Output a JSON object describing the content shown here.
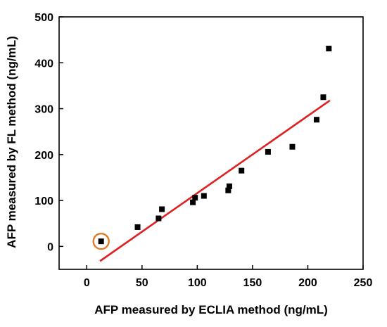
{
  "chart_data": {
    "type": "scatter",
    "title": "",
    "xlabel": "AFP measured by ECLIA method (ng/mL)",
    "ylabel": "AFP measured by FL method (ng/mL)",
    "xlim": [
      -25,
      250
    ],
    "ylim": [
      -50,
      500
    ],
    "xticks": [
      0,
      50,
      100,
      150,
      200,
      250
    ],
    "yticks": [
      0,
      100,
      200,
      300,
      400,
      500
    ],
    "grid": false,
    "colors": {
      "points": "#000000",
      "fit_line": "#e02020",
      "highlight": "#e07b28"
    },
    "series": [
      {
        "points": [
          [
            13,
            11
          ],
          [
            46,
            42
          ],
          [
            65,
            61
          ],
          [
            68,
            81
          ],
          [
            96,
            96
          ],
          [
            98,
            106
          ],
          [
            106,
            110
          ],
          [
            128,
            122
          ],
          [
            129,
            131
          ],
          [
            140,
            165
          ],
          [
            164,
            206
          ],
          [
            186,
            217
          ],
          [
            208,
            276
          ],
          [
            214,
            325
          ],
          [
            219,
            431
          ]
        ]
      }
    ],
    "fit_line": {
      "x": [
        12,
        220
      ],
      "y": [
        -32,
        318
      ]
    },
    "highlight": {
      "x": 13,
      "y": 11,
      "shape": "circle"
    }
  }
}
